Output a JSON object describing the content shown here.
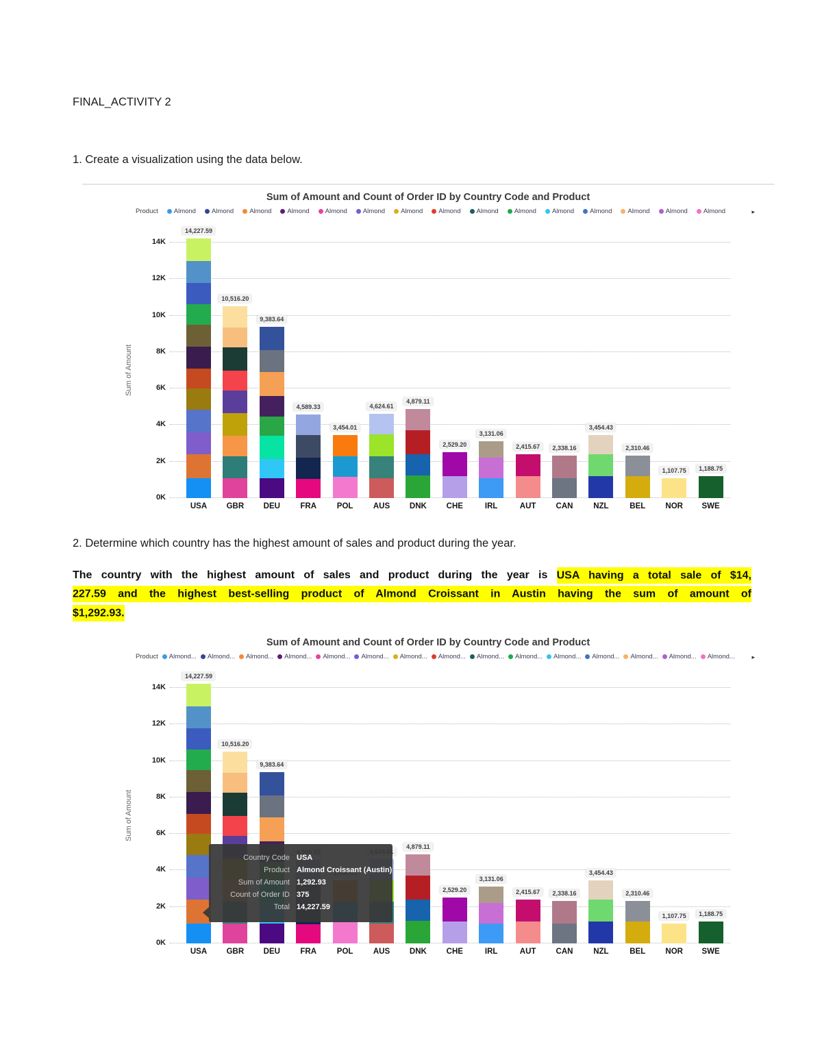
{
  "document": {
    "title": "FINAL_ACTIVITY 2",
    "q1": "1. Create a visualization using the data below.",
    "q2": "2. Determine which country has the highest amount of sales and product during the year.",
    "answer": {
      "prefix": "The country with the highest amount of sales and product during the year is ",
      "highlight_line1": "USA having a total sale of $14,",
      "highlight_line2": "227.59 and the highest best-selling product of Almond Croissant in Austin having the sum of amount of",
      "highlight_line3": "$1,292.93.",
      "highlight_color": "#ffff00"
    }
  },
  "chart_data": {
    "type": "bar",
    "stacked": true,
    "title": "Sum of Amount and Count of Order ID by Country Code and Product",
    "ylabel": "Sum of Amount",
    "xlabel": "",
    "ylim": [
      0,
      14000
    ],
    "grid": "dotted-horizontal",
    "legend_position": "top",
    "legend_title": "Product",
    "legend_overflow_arrow": "▸",
    "legend_item_colors": [
      "#3B9AE8",
      "#33449C",
      "#F28A38",
      "#5C1E77",
      "#E8439B",
      "#7B5BD6",
      "#D9B01C",
      "#E03C31",
      "#1D5F5E",
      "#21A84C",
      "#35C3F0",
      "#4472C4",
      "#F8B267",
      "#B05FD0",
      "#F272C8"
    ],
    "yticks": [
      {
        "label": "0K",
        "value": 0
      },
      {
        "label": "2K",
        "value": 2000
      },
      {
        "label": "4K",
        "value": 4000
      },
      {
        "label": "6K",
        "value": 6000
      },
      {
        "label": "8K",
        "value": 8000
      },
      {
        "label": "10K",
        "value": 10000
      },
      {
        "label": "12K",
        "value": 12000
      },
      {
        "label": "14K",
        "value": 14000
      }
    ],
    "categories": [
      "USA",
      "GBR",
      "DEU",
      "FRA",
      "POL",
      "AUS",
      "DNK",
      "CHE",
      "IRL",
      "AUT",
      "CAN",
      "NZL",
      "BEL",
      "NOR",
      "SWE"
    ],
    "totals": [
      14227.59,
      10516.2,
      9383.64,
      4589.33,
      3454.01,
      4624.61,
      4879.11,
      2529.2,
      3131.06,
      2415.67,
      2338.16,
      3454.43,
      2310.46,
      1107.75,
      1188.75
    ],
    "bars": [
      {
        "country": "USA",
        "total": 14227.59,
        "label": "14,227.59",
        "segments": [
          {
            "value": 1100,
            "color": "#1490F5"
          },
          {
            "value": 1320,
            "color": "#DE7434"
          },
          {
            "value": 1180,
            "color": "#7F5DCB"
          },
          {
            "value": 1250,
            "color": "#5774CB"
          },
          {
            "value": 1150,
            "color": "#9A7B10"
          },
          {
            "value": 1100,
            "color": "#C54A1F"
          },
          {
            "value": 1200,
            "color": "#3A1C4F"
          },
          {
            "value": 1200,
            "color": "#6D5F36"
          },
          {
            "value": 1120,
            "color": "#23AC4E"
          },
          {
            "value": 1180,
            "color": "#3C5BBE"
          },
          {
            "value": 1180,
            "color": "#5292C9"
          },
          {
            "value": 1247.59,
            "color": "#C9F263"
          }
        ]
      },
      {
        "country": "GBR",
        "total": 10516.2,
        "label": "10,516.20",
        "segments": [
          {
            "value": 1100,
            "color": "#E0439B"
          },
          {
            "value": 1200,
            "color": "#2E7D78"
          },
          {
            "value": 1100,
            "color": "#F79646"
          },
          {
            "value": 1250,
            "color": "#BFA10A"
          },
          {
            "value": 1250,
            "color": "#5B3E9B"
          },
          {
            "value": 1100,
            "color": "#F4434B"
          },
          {
            "value": 1250,
            "color": "#1B3C35"
          },
          {
            "value": 1100,
            "color": "#F8BE7E"
          },
          {
            "value": 1166.2,
            "color": "#FCDF9E"
          }
        ]
      },
      {
        "country": "DEU",
        "total": 9383.64,
        "label": "9,383.64",
        "segments": [
          {
            "value": 1100,
            "color": "#4B0982"
          },
          {
            "value": 1050,
            "color": "#30C6F5"
          },
          {
            "value": 1250,
            "color": "#06E3A3"
          },
          {
            "value": 1050,
            "color": "#2AA646"
          },
          {
            "value": 1150,
            "color": "#44215E"
          },
          {
            "value": 1300,
            "color": "#F5A054"
          },
          {
            "value": 1200,
            "color": "#6B7280"
          },
          {
            "value": 1283.64,
            "color": "#34519C"
          }
        ]
      },
      {
        "country": "FRA",
        "total": 4589.33,
        "label": "4,589.33",
        "segments": [
          {
            "value": 1050,
            "color": "#E5097F"
          },
          {
            "value": 1150,
            "color": "#12264F"
          },
          {
            "value": 1250,
            "color": "#3D4A63"
          },
          {
            "value": 1139.33,
            "color": "#93A6E0"
          }
        ]
      },
      {
        "country": "POL",
        "total": 3454.01,
        "label": "3,454.01",
        "segments": [
          {
            "value": 1150,
            "color": "#F279CE"
          },
          {
            "value": 1150,
            "color": "#1B9AD1"
          },
          {
            "value": 1154.01,
            "color": "#FA7B0D"
          }
        ]
      },
      {
        "country": "AUS",
        "total": 4624.61,
        "label": "4,624.61",
        "segments": [
          {
            "value": 1100,
            "color": "#CD5B5B"
          },
          {
            "value": 1200,
            "color": "#37827B"
          },
          {
            "value": 1200,
            "color": "#9BE42A"
          },
          {
            "value": 1124.61,
            "color": "#B5C3F0"
          }
        ]
      },
      {
        "country": "DNK",
        "total": 4879.11,
        "label": "4,879.11",
        "segments": [
          {
            "value": 1250,
            "color": "#29A637"
          },
          {
            "value": 1150,
            "color": "#1763AE"
          },
          {
            "value": 1300,
            "color": "#B51F24"
          },
          {
            "value": 1179.11,
            "color": "#C08A9B"
          }
        ]
      },
      {
        "country": "CHE",
        "total": 2529.2,
        "label": "2,529.20",
        "segments": [
          {
            "value": 1200,
            "color": "#B59FE8"
          },
          {
            "value": 1329.2,
            "color": "#A008A8"
          }
        ]
      },
      {
        "country": "IRL",
        "total": 3131.06,
        "label": "3,131.06",
        "segments": [
          {
            "value": 1100,
            "color": "#3D9AF5"
          },
          {
            "value": 1100,
            "color": "#C86FD6"
          },
          {
            "value": 931.06,
            "color": "#AB9C8A"
          }
        ]
      },
      {
        "country": "AUT",
        "total": 2415.67,
        "label": "2,415.67",
        "segments": [
          {
            "value": 1200,
            "color": "#F58C8C"
          },
          {
            "value": 1215.67,
            "color": "#C40E6E"
          }
        ]
      },
      {
        "country": "CAN",
        "total": 2338.16,
        "label": "2,338.16",
        "segments": [
          {
            "value": 1100,
            "color": "#6D7482"
          },
          {
            "value": 1238.16,
            "color": "#B0798A"
          }
        ]
      },
      {
        "country": "NZL",
        "total": 3454.43,
        "label": "3,454.43",
        "segments": [
          {
            "value": 1200,
            "color": "#2338A8"
          },
          {
            "value": 1200,
            "color": "#6FD96F"
          },
          {
            "value": 1054.43,
            "color": "#E3D3BE"
          }
        ]
      },
      {
        "country": "BEL",
        "total": 2310.46,
        "label": "2,310.46",
        "segments": [
          {
            "value": 1200,
            "color": "#D4AC0D"
          },
          {
            "value": 1110.46,
            "color": "#8A8F98"
          }
        ]
      },
      {
        "country": "NOR",
        "total": 1107.75,
        "label": "1,107.75",
        "segments": [
          {
            "value": 1107.75,
            "color": "#FCE388"
          }
        ]
      },
      {
        "country": "SWE",
        "total": 1188.75,
        "label": "1,188.75",
        "segments": [
          {
            "value": 1188.75,
            "color": "#15602C"
          }
        ]
      }
    ],
    "instances": [
      {
        "name": "chart-1",
        "legend_item_label": "Almond"
      },
      {
        "name": "chart-2",
        "legend_item_label": "Almond...",
        "tooltip": {
          "rows": [
            {
              "label": "Country Code",
              "value": "USA"
            },
            {
              "label": "Product",
              "value": "Almond Croissant (Austin)"
            },
            {
              "label": "Sum of Amount",
              "value": "1,292.93"
            },
            {
              "label": "Count of Order ID",
              "value": "375"
            },
            {
              "label": "Total",
              "value": "14,227.59"
            }
          ]
        }
      }
    ]
  }
}
